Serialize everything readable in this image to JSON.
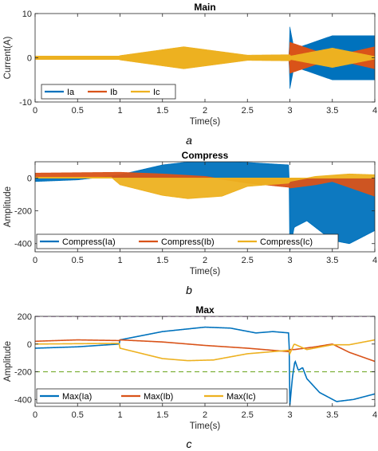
{
  "chart_data": [
    {
      "type": "line",
      "title": "Main",
      "xlabel": "Time(s)",
      "ylabel": "Current(A)",
      "caption": "a",
      "xlim": [
        0,
        4
      ],
      "ylim": [
        -10,
        10
      ],
      "xticks": [
        "0",
        "0.5",
        "1",
        "1.5",
        "2",
        "2.5",
        "3",
        "3.5",
        "4"
      ],
      "yticks": [
        "-10",
        "0",
        "10"
      ],
      "legend": "bottom-left",
      "series": [
        {
          "name": "Ia",
          "color": "#0072BD",
          "kind": "band",
          "envelope": [
            [
              0,
              0.3
            ],
            [
              1.0,
              0.3
            ],
            [
              1.0,
              0.3
            ],
            [
              2.99,
              0.3
            ],
            [
              3.0,
              7.0
            ],
            [
              3.05,
              2.0
            ],
            [
              3.5,
              5.0
            ],
            [
              4.0,
              5.0
            ]
          ]
        },
        {
          "name": "Ib",
          "color": "#D95319",
          "kind": "band",
          "envelope": [
            [
              0,
              0.3
            ],
            [
              1.0,
              0.3
            ],
            [
              2.99,
              0.3
            ],
            [
              3.0,
              3.5
            ],
            [
              3.5,
              0.3
            ],
            [
              4.0,
              2.5
            ]
          ]
        },
        {
          "name": "Ic",
          "color": "#EDB120",
          "kind": "band",
          "envelope": [
            [
              0,
              0.4
            ],
            [
              0.99,
              0.4
            ],
            [
              1.0,
              0.5
            ],
            [
              1.75,
              2.5
            ],
            [
              2.5,
              0.6
            ],
            [
              3.0,
              0.7
            ],
            [
              3.01,
              0.4
            ],
            [
              3.5,
              2.2
            ],
            [
              4.0,
              0.3
            ]
          ]
        }
      ]
    },
    {
      "type": "line",
      "title": "Compress",
      "xlabel": "Time(s)",
      "ylabel": "Amplitude",
      "caption": "b",
      "xlim": [
        0,
        4
      ],
      "ylim": [
        -450,
        100
      ],
      "xticks": [
        "0",
        "0.5",
        "1",
        "1.5",
        "2",
        "2.5",
        "3",
        "3.5",
        "4"
      ],
      "yticks": [
        "-400",
        "-200",
        "0"
      ],
      "legend": "bottom",
      "series": [
        {
          "name": "Compress(Ia)",
          "color": "#0072BD",
          "kind": "fill",
          "points": [
            [
              0,
              -20
            ],
            [
              0.5,
              -10
            ],
            [
              1.0,
              20
            ],
            [
              1.5,
              80
            ],
            [
              2.0,
              110
            ],
            [
              2.5,
              95
            ],
            [
              2.99,
              80
            ],
            [
              3.0,
              -440
            ],
            [
              3.05,
              -300
            ],
            [
              3.2,
              -260
            ],
            [
              3.5,
              -380
            ],
            [
              3.7,
              -400
            ],
            [
              4.0,
              -320
            ]
          ]
        },
        {
          "name": "Compress(Ib)",
          "color": "#D95319",
          "kind": "fill",
          "points": [
            [
              0,
              30
            ],
            [
              1.0,
              35
            ],
            [
              1.5,
              25
            ],
            [
              2.0,
              10
            ],
            [
              2.5,
              -30
            ],
            [
              2.99,
              -55
            ],
            [
              3.0,
              -60
            ],
            [
              3.3,
              -40
            ],
            [
              3.5,
              -20
            ],
            [
              4.0,
              -110
            ]
          ]
        },
        {
          "name": "Compress(Ic)",
          "color": "#EDB120",
          "kind": "fill",
          "points": [
            [
              0,
              5
            ],
            [
              0.9,
              5
            ],
            [
              1.0,
              -40
            ],
            [
              1.5,
              -105
            ],
            [
              1.8,
              -125
            ],
            [
              2.2,
              -110
            ],
            [
              2.5,
              -50
            ],
            [
              2.99,
              -30
            ],
            [
              3.0,
              -20
            ],
            [
              3.3,
              10
            ],
            [
              3.7,
              25
            ],
            [
              4.0,
              20
            ]
          ]
        }
      ]
    },
    {
      "type": "line",
      "title": "Max",
      "xlabel": "Time(s)",
      "ylabel": "Amplitude",
      "caption": "c",
      "xlim": [
        0,
        4
      ],
      "ylim": [
        -450,
        200
      ],
      "xticks": [
        "0",
        "0.5",
        "1",
        "1.5",
        "2",
        "2.5",
        "3",
        "3.5",
        "4"
      ],
      "yticks": [
        "-400",
        "-200",
        "0",
        "200"
      ],
      "legend": "bottom",
      "reference_lines": [
        {
          "y": 200,
          "color": "#7E2F8E"
        },
        {
          "y": -200,
          "color": "#77AC30"
        }
      ],
      "series": [
        {
          "name": "Max(Ia)",
          "color": "#0072BD",
          "kind": "line",
          "points": [
            [
              0,
              -30
            ],
            [
              0.5,
              -20
            ],
            [
              0.99,
              0
            ],
            [
              1.0,
              30
            ],
            [
              1.5,
              90
            ],
            [
              2.0,
              122
            ],
            [
              2.3,
              115
            ],
            [
              2.6,
              80
            ],
            [
              2.8,
              90
            ],
            [
              2.99,
              80
            ],
            [
              3.0,
              -440
            ],
            [
              3.03,
              -240
            ],
            [
              3.06,
              -120
            ],
            [
              3.1,
              -190
            ],
            [
              3.15,
              -170
            ],
            [
              3.2,
              -250
            ],
            [
              3.35,
              -350
            ],
            [
              3.55,
              -415
            ],
            [
              3.75,
              -400
            ],
            [
              4.0,
              -360
            ]
          ]
        },
        {
          "name": "Max(Ib)",
          "color": "#D95319",
          "kind": "line",
          "points": [
            [
              0,
              20
            ],
            [
              0.5,
              30
            ],
            [
              0.99,
              25
            ],
            [
              1.0,
              30
            ],
            [
              1.5,
              15
            ],
            [
              2.0,
              -10
            ],
            [
              2.5,
              -30
            ],
            [
              2.99,
              -55
            ],
            [
              3.0,
              -40
            ],
            [
              3.05,
              -40
            ],
            [
              3.3,
              -20
            ],
            [
              3.5,
              0
            ],
            [
              3.7,
              -60
            ],
            [
              4.0,
              -125
            ]
          ]
        },
        {
          "name": "Max(Ic)",
          "color": "#EDB120",
          "kind": "line",
          "points": [
            [
              0,
              0
            ],
            [
              0.99,
              5
            ],
            [
              1.0,
              -30
            ],
            [
              1.5,
              -105
            ],
            [
              1.8,
              -120
            ],
            [
              2.1,
              -115
            ],
            [
              2.5,
              -70
            ],
            [
              2.99,
              -45
            ],
            [
              3.0,
              -70
            ],
            [
              3.05,
              0
            ],
            [
              3.2,
              -40
            ],
            [
              3.5,
              -5
            ],
            [
              3.7,
              -5
            ],
            [
              4.0,
              30
            ]
          ]
        }
      ]
    }
  ]
}
